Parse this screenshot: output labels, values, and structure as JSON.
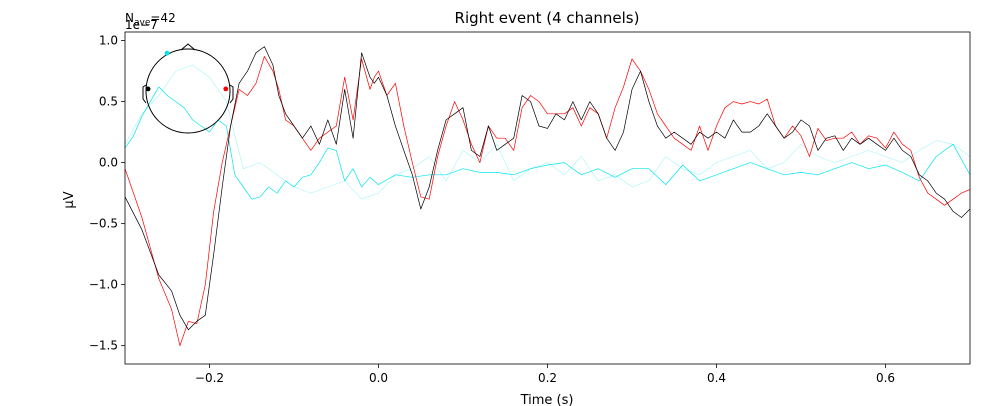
{
  "chart_data": {
    "type": "line",
    "title": "Right event (4 channels)",
    "nave_label": "N",
    "nave_sub": "ave",
    "nave_value": "=42",
    "offset_text": "1e−7",
    "xlabel": "Time (s)",
    "ylabel": "µV",
    "xlim": [
      -0.3,
      0.7
    ],
    "ylim": [
      -1.65,
      1.07
    ],
    "xticks": [
      -0.2,
      0.0,
      0.2,
      0.4,
      0.6
    ],
    "xtick_labels": [
      "−0.2",
      "0.0",
      "0.2",
      "0.4",
      "0.6"
    ],
    "yticks": [
      -1.5,
      -1.0,
      -0.5,
      0.0,
      0.5,
      1.0
    ],
    "ytick_labels": [
      "−1.5",
      "−1.0",
      "−0.5",
      "0.0",
      "0.5",
      "1.0"
    ],
    "grid": false,
    "legend": "sensor-location head inset (top-left)",
    "series": [
      {
        "color": "#000000",
        "width": 0.7,
        "x": [
          -0.3,
          -0.28,
          -0.26,
          -0.245,
          -0.235,
          -0.225,
          -0.215,
          -0.205,
          -0.195,
          -0.185,
          -0.175,
          -0.165,
          -0.155,
          -0.145,
          -0.135,
          -0.125,
          -0.118,
          -0.11,
          -0.1,
          -0.09,
          -0.08,
          -0.07,
          -0.06,
          -0.05,
          -0.04,
          -0.03,
          -0.02,
          -0.01,
          -0.005,
          0.0,
          0.01,
          0.02,
          0.03,
          0.04,
          0.05,
          0.06,
          0.07,
          0.08,
          0.09,
          0.1,
          0.11,
          0.12,
          0.13,
          0.14,
          0.15,
          0.16,
          0.17,
          0.18,
          0.19,
          0.2,
          0.21,
          0.22,
          0.23,
          0.24,
          0.25,
          0.26,
          0.27,
          0.28,
          0.29,
          0.3,
          0.31,
          0.32,
          0.33,
          0.34,
          0.35,
          0.36,
          0.37,
          0.38,
          0.39,
          0.4,
          0.41,
          0.42,
          0.43,
          0.44,
          0.45,
          0.46,
          0.47,
          0.48,
          0.49,
          0.5,
          0.51,
          0.52,
          0.53,
          0.54,
          0.55,
          0.56,
          0.57,
          0.58,
          0.59,
          0.6,
          0.61,
          0.62,
          0.63,
          0.64,
          0.65,
          0.66,
          0.67,
          0.68,
          0.69,
          0.7
        ],
        "y": [
          -0.28,
          -0.55,
          -0.92,
          -1.05,
          -1.25,
          -1.37,
          -1.3,
          -1.25,
          -0.75,
          -0.2,
          0.3,
          0.65,
          0.75,
          0.9,
          0.95,
          0.8,
          0.55,
          0.4,
          0.3,
          0.2,
          0.3,
          0.15,
          0.35,
          0.15,
          0.6,
          0.2,
          0.9,
          0.7,
          0.65,
          0.7,
          0.55,
          0.3,
          0.1,
          -0.1,
          -0.38,
          -0.2,
          0.1,
          0.35,
          0.4,
          0.45,
          0.1,
          0.05,
          0.3,
          0.1,
          0.15,
          0.2,
          0.55,
          0.5,
          0.3,
          0.28,
          0.4,
          0.35,
          0.5,
          0.35,
          0.5,
          0.4,
          0.2,
          0.1,
          0.25,
          0.6,
          0.75,
          0.5,
          0.3,
          0.2,
          0.25,
          0.2,
          0.15,
          0.25,
          0.2,
          0.25,
          0.2,
          0.35,
          0.25,
          0.25,
          0.3,
          0.4,
          0.3,
          0.2,
          0.25,
          0.35,
          0.3,
          0.1,
          0.2,
          0.22,
          0.1,
          0.2,
          0.15,
          0.2,
          0.15,
          0.1,
          0.2,
          0.1,
          0.05,
          -0.1,
          -0.15,
          -0.25,
          -0.3,
          -0.4,
          -0.45,
          -0.38
        ]
      },
      {
        "color": "#ff0000",
        "width": 0.7,
        "x": [
          -0.3,
          -0.28,
          -0.26,
          -0.245,
          -0.235,
          -0.225,
          -0.215,
          -0.205,
          -0.195,
          -0.185,
          -0.175,
          -0.165,
          -0.155,
          -0.145,
          -0.135,
          -0.125,
          -0.118,
          -0.11,
          -0.1,
          -0.09,
          -0.08,
          -0.07,
          -0.06,
          -0.05,
          -0.04,
          -0.03,
          -0.02,
          -0.01,
          -0.005,
          0.0,
          0.01,
          0.02,
          0.03,
          0.04,
          0.05,
          0.06,
          0.07,
          0.08,
          0.09,
          0.1,
          0.11,
          0.12,
          0.13,
          0.14,
          0.15,
          0.16,
          0.17,
          0.18,
          0.19,
          0.2,
          0.21,
          0.22,
          0.23,
          0.24,
          0.25,
          0.26,
          0.27,
          0.28,
          0.29,
          0.3,
          0.31,
          0.32,
          0.33,
          0.34,
          0.35,
          0.36,
          0.37,
          0.38,
          0.39,
          0.4,
          0.41,
          0.42,
          0.43,
          0.44,
          0.45,
          0.46,
          0.47,
          0.48,
          0.49,
          0.5,
          0.51,
          0.52,
          0.53,
          0.54,
          0.55,
          0.56,
          0.57,
          0.58,
          0.59,
          0.6,
          0.61,
          0.62,
          0.63,
          0.64,
          0.65,
          0.66,
          0.67,
          0.68,
          0.69,
          0.7
        ],
        "y": [
          -0.05,
          -0.45,
          -0.95,
          -1.2,
          -1.5,
          -1.3,
          -1.32,
          -1.0,
          -0.4,
          0.0,
          0.3,
          0.6,
          0.55,
          0.65,
          0.87,
          0.75,
          0.6,
          0.35,
          0.3,
          0.2,
          0.1,
          0.2,
          0.25,
          0.3,
          0.7,
          0.35,
          0.85,
          0.6,
          0.7,
          0.75,
          0.55,
          0.65,
          0.3,
          0.0,
          -0.28,
          -0.3,
          0.05,
          0.3,
          0.5,
          0.35,
          0.15,
          0.0,
          0.3,
          0.2,
          0.2,
          0.1,
          0.45,
          0.55,
          0.5,
          0.4,
          0.4,
          0.4,
          0.45,
          0.3,
          0.45,
          0.4,
          0.2,
          0.45,
          0.62,
          0.85,
          0.75,
          0.6,
          0.4,
          0.3,
          0.2,
          0.15,
          0.1,
          0.3,
          0.1,
          0.3,
          0.45,
          0.5,
          0.48,
          0.5,
          0.48,
          0.52,
          0.3,
          0.2,
          0.3,
          0.22,
          0.05,
          0.28,
          0.18,
          0.2,
          0.2,
          0.25,
          0.15,
          0.22,
          0.2,
          0.12,
          0.25,
          0.15,
          0.1,
          -0.12,
          -0.25,
          -0.3,
          -0.35,
          -0.3,
          -0.25,
          -0.22
        ]
      },
      {
        "color": "#00e5ee",
        "width": 0.7,
        "x": [
          -0.3,
          -0.29,
          -0.28,
          -0.27,
          -0.26,
          -0.25,
          -0.24,
          -0.23,
          -0.22,
          -0.21,
          -0.2,
          -0.19,
          -0.18,
          -0.17,
          -0.16,
          -0.15,
          -0.14,
          -0.13,
          -0.12,
          -0.11,
          -0.1,
          -0.09,
          -0.08,
          -0.07,
          -0.06,
          -0.05,
          -0.04,
          -0.03,
          -0.02,
          -0.01,
          0.0,
          0.02,
          0.04,
          0.06,
          0.08,
          0.1,
          0.12,
          0.14,
          0.16,
          0.18,
          0.2,
          0.22,
          0.24,
          0.26,
          0.28,
          0.3,
          0.32,
          0.34,
          0.36,
          0.38,
          0.4,
          0.42,
          0.44,
          0.46,
          0.48,
          0.5,
          0.52,
          0.54,
          0.56,
          0.58,
          0.6,
          0.62,
          0.64,
          0.66,
          0.68,
          0.7
        ],
        "y": [
          0.12,
          0.22,
          0.38,
          0.5,
          0.62,
          0.55,
          0.5,
          0.45,
          0.35,
          0.3,
          0.25,
          0.35,
          0.3,
          -0.1,
          -0.2,
          -0.3,
          -0.28,
          -0.2,
          -0.25,
          -0.15,
          -0.2,
          -0.12,
          -0.1,
          0.0,
          0.12,
          0.1,
          -0.15,
          -0.05,
          -0.2,
          -0.12,
          -0.18,
          -0.1,
          -0.12,
          -0.1,
          -0.1,
          -0.05,
          -0.08,
          -0.08,
          -0.1,
          -0.05,
          -0.02,
          0.0,
          -0.1,
          -0.05,
          -0.12,
          -0.05,
          -0.05,
          -0.18,
          -0.02,
          -0.15,
          -0.1,
          -0.05,
          0.0,
          -0.05,
          -0.1,
          -0.08,
          -0.1,
          -0.05,
          0.0,
          -0.05,
          -0.02,
          -0.08,
          -0.15,
          0.05,
          0.15,
          -0.1
        ]
      },
      {
        "color": "#a6f5f8",
        "width": 0.6,
        "x": [
          -0.3,
          -0.28,
          -0.26,
          -0.24,
          -0.22,
          -0.2,
          -0.18,
          -0.16,
          -0.14,
          -0.12,
          -0.1,
          -0.08,
          -0.06,
          -0.04,
          -0.02,
          0.0,
          0.02,
          0.04,
          0.06,
          0.08,
          0.1,
          0.12,
          0.14,
          0.16,
          0.18,
          0.2,
          0.22,
          0.24,
          0.26,
          0.28,
          0.3,
          0.32,
          0.34,
          0.36,
          0.38,
          0.4,
          0.42,
          0.44,
          0.46,
          0.48,
          0.5,
          0.52,
          0.54,
          0.56,
          0.58,
          0.6,
          0.62,
          0.64,
          0.66,
          0.68,
          0.7
        ],
        "y": [
          0.15,
          0.4,
          0.55,
          0.75,
          0.8,
          0.7,
          0.5,
          -0.05,
          0.0,
          -0.1,
          -0.2,
          -0.25,
          -0.2,
          -0.15,
          -0.3,
          -0.25,
          -0.1,
          -0.05,
          0.05,
          -0.15,
          0.1,
          0.0,
          0.15,
          -0.15,
          -0.05,
          0.0,
          -0.1,
          0.05,
          -0.15,
          -0.1,
          -0.2,
          -0.15,
          0.05,
          -0.05,
          -0.1,
          0.0,
          0.05,
          0.1,
          -0.05,
          0.0,
          0.15,
          0.05,
          0.0,
          0.05,
          0.1,
          0.05,
          0.0,
          0.1,
          0.18,
          0.15,
          0.05
        ]
      }
    ],
    "sensors": [
      {
        "color": "#00e5ee",
        "pos": [
          -0.5,
          0.9
        ]
      },
      {
        "color": "#000000",
        "pos": [
          -0.95,
          0.05
        ]
      },
      {
        "color": "#ff0000",
        "pos": [
          0.9,
          0.05
        ]
      }
    ]
  }
}
